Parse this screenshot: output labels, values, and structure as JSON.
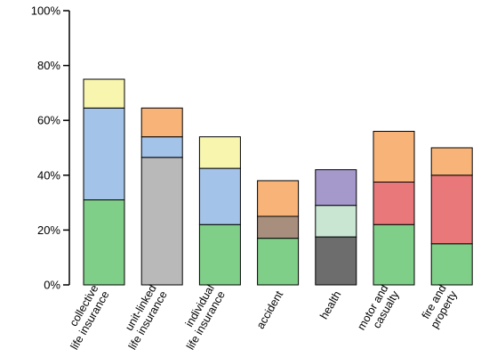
{
  "chart_data": {
    "type": "bar",
    "stacked": true,
    "title": "",
    "xlabel": "",
    "ylabel": "",
    "ylim": [
      0,
      100
    ],
    "yticks": [
      "0%",
      "20%",
      "40%",
      "60%",
      "80%",
      "100%"
    ],
    "grid": false,
    "legend": "none",
    "categories": [
      [
        "collective",
        "life insurance"
      ],
      [
        "unit-linked",
        "life insurance"
      ],
      [
        "individual",
        "life insurance"
      ],
      [
        "accident"
      ],
      [
        "health"
      ],
      [
        "motor and",
        "casualty"
      ],
      [
        "fire and",
        "property"
      ]
    ],
    "bars": [
      {
        "segments": [
          {
            "value": 31,
            "color": "#80cf88"
          },
          {
            "value": 33.5,
            "color": "#a3c3e8"
          },
          {
            "value": 10.5,
            "color": "#f8f5ae"
          }
        ]
      },
      {
        "segments": [
          {
            "value": 46.5,
            "color": "#b9b9b9"
          },
          {
            "value": 7.5,
            "color": "#a3c3e8"
          },
          {
            "value": 10.5,
            "color": "#f8b478"
          }
        ]
      },
      {
        "segments": [
          {
            "value": 22,
            "color": "#80cf88"
          },
          {
            "value": 20.5,
            "color": "#a3c3e8"
          },
          {
            "value": 11.5,
            "color": "#f8f5ae"
          }
        ]
      },
      {
        "segments": [
          {
            "value": 17,
            "color": "#80cf88"
          },
          {
            "value": 8,
            "color": "#a88f7d"
          },
          {
            "value": 13,
            "color": "#f8b478"
          }
        ]
      },
      {
        "segments": [
          {
            "value": 17.5,
            "color": "#6d6d6d"
          },
          {
            "value": 11.5,
            "color": "#c8e6d1"
          },
          {
            "value": 13,
            "color": "#a599cb"
          }
        ]
      },
      {
        "segments": [
          {
            "value": 22,
            "color": "#80cf88"
          },
          {
            "value": 15.5,
            "color": "#e8787a"
          },
          {
            "value": 18.5,
            "color": "#f8b478"
          }
        ]
      },
      {
        "segments": [
          {
            "value": 15,
            "color": "#80cf88"
          },
          {
            "value": 25,
            "color": "#e8787a"
          },
          {
            "value": 10,
            "color": "#f8b478"
          }
        ]
      }
    ]
  }
}
